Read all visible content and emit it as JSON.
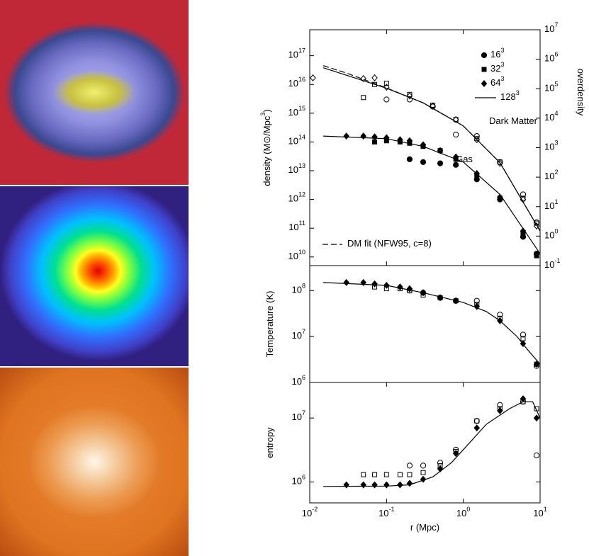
{
  "chart_data": [
    {
      "type": "line",
      "ylabel": "density (M⊙/Mpc^{3})",
      "y2label": "overdensity",
      "log": true,
      "xlim": [
        0.01,
        10
      ],
      "ylim": [
        5000000000.0,
        8e+17
      ],
      "y2lim": [
        0.1,
        10000000
      ],
      "xticks": [
        {
          "value": 0.01,
          "label": "10^{-2}"
        },
        {
          "value": 0.1,
          "label": "10^{-1}"
        },
        {
          "value": 1,
          "label": "10^{0}"
        },
        {
          "value": 10,
          "label": "10^{1}"
        }
      ],
      "yticks": [
        {
          "value": 10000000000.0,
          "label": "10^{10}"
        },
        {
          "value": 100000000000.0,
          "label": "10^{11}"
        },
        {
          "value": 1000000000000.0,
          "label": "10^{12}"
        },
        {
          "value": 10000000000000.0,
          "label": "10^{13}"
        },
        {
          "value": 100000000000000.0,
          "label": "10^{14}"
        },
        {
          "value": 1000000000000000.0,
          "label": "10^{15}"
        },
        {
          "value": 1e+16,
          "label": "10^{16}"
        },
        {
          "value": 1e+17,
          "label": "10^{17}"
        }
      ],
      "y2ticks": [
        {
          "value": 0.1,
          "label": "10^{-1}"
        },
        {
          "value": 1,
          "label": "10^{0}"
        },
        {
          "value": 10,
          "label": "10^{1}"
        },
        {
          "value": 100,
          "label": "10^{2}"
        },
        {
          "value": 1000,
          "label": "10^{3}"
        },
        {
          "value": 10000,
          "label": "10^{4}"
        },
        {
          "value": 100000,
          "label": "10^{5}"
        },
        {
          "value": 1000000,
          "label": "10^{6}"
        },
        {
          "value": 10000000,
          "label": "10^{7}"
        }
      ],
      "annotations": [
        "Dark Matter",
        "Gas"
      ],
      "series": [
        {
          "name": "16^{3}",
          "marker": "circle",
          "filled": true,
          "color": "#000",
          "x": [
            0.2,
            0.3,
            0.5,
            0.8,
            1.5,
            3,
            6,
            9
          ],
          "values": [
            25000000000000.0,
            20000000000000.0,
            18000000000000.0,
            16000000000000.0,
            5000000000000.0,
            1000000000000.0,
            50000000000.0,
            13000000000.0
          ]
        },
        {
          "name": "32^{3}",
          "marker": "square",
          "filled": true,
          "color": "#000",
          "x": [
            0.07,
            0.1,
            0.15,
            0.2,
            0.3,
            0.5,
            0.8,
            1.5,
            3,
            6,
            9
          ],
          "values": [
            100000000000000.0,
            110000000000000.0,
            100000000000000.0,
            90000000000000.0,
            70000000000000.0,
            50000000000000.0,
            25000000000000.0,
            7000000000000.0,
            1100000000000.0,
            70000000000.0,
            11000000000.0
          ]
        },
        {
          "name": "64^{3}",
          "marker": "diamond",
          "filled": true,
          "color": "#000",
          "x": [
            0.03,
            0.05,
            0.07,
            0.1,
            0.15,
            0.2,
            0.3,
            0.5,
            0.8,
            1.5,
            3,
            6,
            9
          ],
          "values": [
            160000000000000.0,
            160000000000000.0,
            150000000000000.0,
            140000000000000.0,
            120000000000000.0,
            110000000000000.0,
            80000000000000.0,
            50000000000000.0,
            30000000000000.0,
            8000000000000.0,
            1200000000000.0,
            80000000000.0,
            12000000000.0
          ]
        },
        {
          "name": "128^{3}",
          "marker": "line",
          "color": "#000",
          "x": [
            0.015,
            0.1,
            0.3,
            1,
            3,
            10
          ],
          "values": [
            160000000000000.0,
            130000000000000.0,
            70000000000000.0,
            20000000000000.0,
            1500000000000.0,
            13000000000.0
          ]
        },
        {
          "marker": "circle",
          "filled": false,
          "color": "#000",
          "x": [
            0.1,
            0.2,
            0.4,
            0.8,
            1.5,
            3,
            6,
            9
          ],
          "values": [
            3000000000000000.0,
            3000000000000000.0,
            1700000000000000.0,
            180000000000000.0,
            160000000000000.0,
            20000000000000.0,
            1500000000000.0,
            160000000000.0
          ]
        },
        {
          "marker": "square",
          "filled": false,
          "color": "#000",
          "x": [
            0.05,
            0.07,
            0.1,
            0.2,
            0.4,
            0.8,
            1.5,
            3,
            6,
            9
          ],
          "values": [
            3500000000000000.0,
            1e+16,
            1.1e+16,
            4500000000000000.0,
            1900000000000000.0,
            600000000000000.0,
            130000000000000.0,
            20000000000000.0,
            1100000000000.0,
            150000000000.0
          ]
        },
        {
          "marker": "diamond",
          "filled": false,
          "color": "#000",
          "x": [
            0.011,
            0.05,
            0.07,
            0.1,
            0.2,
            0.4,
            0.8,
            1.5,
            3,
            6,
            9
          ],
          "values": [
            1.7e+16,
            1.6e+16,
            1.7e+16,
            8000000000000000.0,
            4000000000000000.0,
            1800000000000000.0,
            600000000000000.0,
            120000000000000.0,
            18000000000000.0,
            1000000000000.0,
            120000000000.0
          ]
        },
        {
          "marker": "line",
          "color": "#000",
          "x": [
            0.015,
            0.03,
            0.1,
            0.3,
            1,
            3,
            10
          ],
          "values": [
            3.8e+16,
            2.1e+16,
            7400000000000000.0,
            2300000000000000.0,
            360000000000000.0,
            19000000000000.0,
            80000000000.0
          ]
        },
        {
          "name": "DM fit (NFW95, c=8)",
          "marker": "dashed",
          "color": "#000",
          "x": [
            0.015,
            0.03,
            0.1,
            0.3,
            1,
            3,
            10
          ],
          "values": [
            4.5e+16,
            2.5e+16,
            7600000000000000.0,
            2300000000000000.0,
            360000000000000.0,
            19000000000000.0,
            80000000000.0
          ]
        }
      ]
    },
    {
      "type": "line",
      "ylabel": "Temperature (K)",
      "log": true,
      "xlim": [
        0.01,
        10
      ],
      "ylim": [
        1000000,
        350000000
      ],
      "yticks": [
        {
          "value": 1000000,
          "label": "10^{6}"
        },
        {
          "value": 10000000,
          "label": "10^{7}"
        },
        {
          "value": 100000000,
          "label": "10^{8}"
        }
      ],
      "series": [
        {
          "marker": "circle",
          "filled": false,
          "color": "#000",
          "x": [
            0.2,
            0.3,
            0.5,
            0.8,
            1.5,
            3,
            6,
            9
          ],
          "values": [
            100000000.0,
            90000000.0,
            70000000.0,
            60000000.0,
            60000000.0,
            30000000.0,
            11000000.0,
            2300000.0
          ]
        },
        {
          "marker": "square",
          "filled": false,
          "color": "#000",
          "x": [
            0.07,
            0.1,
            0.15,
            0.2,
            0.3,
            0.5,
            0.8,
            1.5,
            3,
            6,
            9
          ],
          "values": [
            120000000.0,
            110000000.0,
            110000000.0,
            100000000.0,
            80000000.0,
            70000000.0,
            60000000.0,
            50000000.0,
            25000000.0,
            9000000.0,
            2500000.0
          ]
        },
        {
          "marker": "diamond",
          "filled": true,
          "color": "#000",
          "x": [
            0.03,
            0.05,
            0.07,
            0.1,
            0.15,
            0.2,
            0.3,
            0.5,
            0.8,
            1.5,
            3,
            6,
            9
          ],
          "values": [
            150000000.0,
            150000000.0,
            140000000.0,
            130000000.0,
            120000000.0,
            110000000.0,
            90000000.0,
            70000000.0,
            60000000.0,
            45000000.0,
            22000000.0,
            7000000.0,
            2500000.0
          ]
        },
        {
          "marker": "line",
          "color": "#000",
          "x": [
            0.015,
            0.1,
            0.3,
            1,
            2,
            3,
            5,
            7,
            10
          ],
          "values": [
            150000000.0,
            130000000.0,
            90000000.0,
            55000000.0,
            35000000.0,
            22000000.0,
            10000000.0,
            5000000.0,
            2500000.0
          ]
        }
      ]
    },
    {
      "type": "line",
      "ylabel": "entropy",
      "xlabel": "r (Mpc)",
      "log": true,
      "xlim": [
        0.01,
        10
      ],
      "ylim": [
        470000,
        36000000
      ],
      "xticks": [
        {
          "value": 0.01,
          "label": "10^{-2}"
        },
        {
          "value": 0.1,
          "label": "10^{-1}"
        },
        {
          "value": 1,
          "label": "10^{0}"
        },
        {
          "value": 10,
          "label": "10^{1}"
        }
      ],
      "yticks": [
        {
          "value": 1000000,
          "label": "10^{6}"
        },
        {
          "value": 10000000,
          "label": "10^{7}"
        }
      ],
      "series": [
        {
          "marker": "circle",
          "filled": false,
          "color": "#000",
          "x": [
            0.2,
            0.3,
            0.5,
            0.8,
            1.5,
            3,
            6,
            9
          ],
          "values": [
            1800000.0,
            1800000.0,
            2000000.0,
            3200000.0,
            9000000.0,
            16000000.0,
            18000000.0,
            2600000.0
          ]
        },
        {
          "marker": "square",
          "filled": false,
          "color": "#000",
          "x": [
            0.05,
            0.07,
            0.1,
            0.15,
            0.2,
            0.3,
            0.5,
            0.8,
            1.5,
            3,
            6,
            9
          ],
          "values": [
            1300000.0,
            1300000.0,
            1300000.0,
            1300000.0,
            1300000.0,
            1400000.0,
            1800000.0,
            3000000.0,
            9000000.0,
            14000000.0,
            18000000.0,
            14000000.0
          ]
        },
        {
          "marker": "diamond",
          "filled": true,
          "color": "#000",
          "x": [
            0.03,
            0.05,
            0.07,
            0.1,
            0.15,
            0.2,
            0.3,
            0.5,
            0.8,
            1.5,
            3,
            6,
            9
          ],
          "values": [
            900000.0,
            900000.0,
            900000.0,
            900000.0,
            900000.0,
            950000.0,
            1100000.0,
            1600000.0,
            2800000.0,
            7000000.0,
            13000000.0,
            20000000.0,
            10000000.0
          ]
        },
        {
          "marker": "line",
          "color": "#000",
          "x": [
            0.015,
            0.1,
            0.2,
            0.4,
            0.7,
            1,
            2,
            4,
            6,
            8,
            10
          ],
          "values": [
            850000.0,
            860000.0,
            900000.0,
            1200000.0,
            2000000.0,
            3200000.0,
            8000000.0,
            14000000.0,
            18000000.0,
            18000000.0,
            10000000.0
          ]
        }
      ]
    }
  ]
}
